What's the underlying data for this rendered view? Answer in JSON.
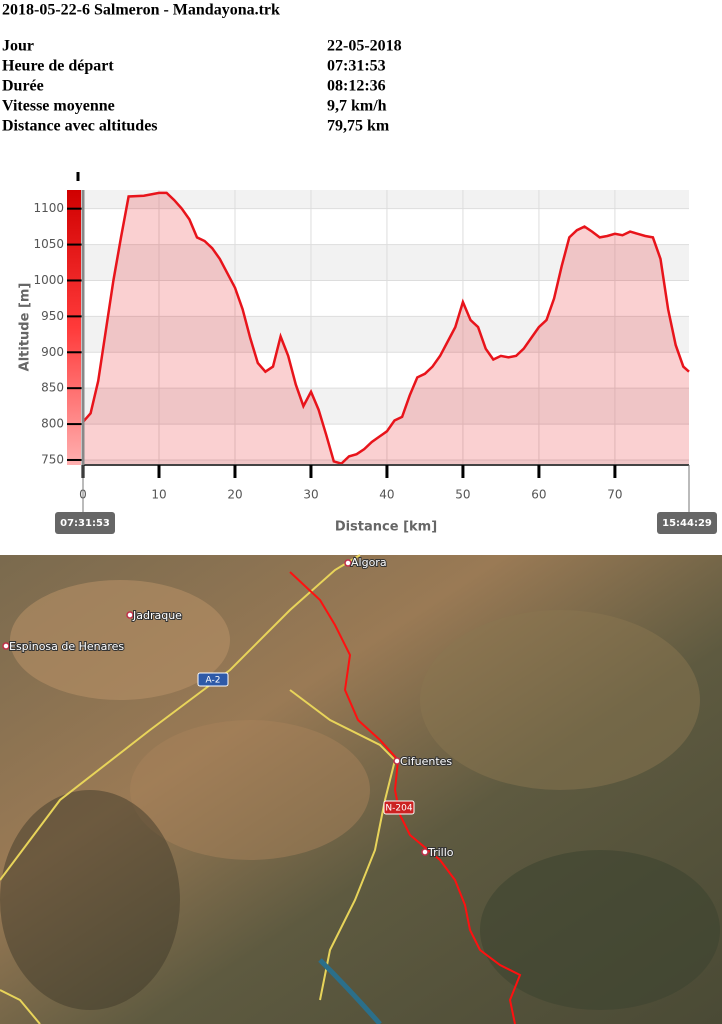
{
  "header": {
    "title": "2018-05-22-6 Salmeron - Mandayona.trk"
  },
  "table": {
    "rows": [
      [
        "Jour",
        "22-05-2018"
      ],
      [
        "Heure de départ",
        "07:31:53"
      ],
      [
        "Durée",
        "08:12:36"
      ],
      [
        "Vitesse moyenne",
        "9,7 km/h"
      ],
      [
        "Distance avec altitudes",
        "79,75 km"
      ]
    ]
  },
  "chart_data": {
    "type": "area",
    "x_label": "Distance [km]",
    "y_label": "Altitude [m]",
    "color": "#e8141b",
    "start_label": "07:31:53",
    "end_label": "15:44:29",
    "x": [
      0,
      1,
      2,
      3,
      4,
      5,
      6,
      8,
      10,
      11,
      12,
      13,
      14,
      15,
      16,
      17,
      18,
      19,
      20,
      21,
      22,
      23,
      24,
      25,
      26,
      27,
      28,
      29,
      30,
      31,
      32,
      33,
      34,
      35,
      36,
      37,
      38,
      40,
      41,
      42,
      43,
      44,
      45,
      46,
      47,
      48,
      49,
      50,
      51,
      52,
      53,
      54,
      55,
      56,
      57,
      58,
      59,
      60,
      61,
      62,
      63,
      64,
      65,
      66,
      67,
      68,
      69,
      70,
      71,
      72,
      73,
      74,
      75,
      76,
      77,
      78,
      79,
      79.75
    ],
    "values": [
      803,
      815,
      860,
      930,
      1000,
      1060,
      1117,
      1118,
      1122,
      1122,
      1112,
      1100,
      1085,
      1060,
      1055,
      1045,
      1030,
      1010,
      990,
      960,
      920,
      885,
      873,
      880,
      922,
      895,
      855,
      825,
      845,
      820,
      785,
      748,
      745,
      755,
      758,
      765,
      775,
      790,
      805,
      810,
      840,
      865,
      870,
      880,
      895,
      915,
      935,
      970,
      945,
      935,
      905,
      890,
      895,
      893,
      895,
      905,
      920,
      935,
      945,
      975,
      1020,
      1060,
      1070,
      1075,
      1068,
      1060,
      1062,
      1065,
      1063,
      1068,
      1065,
      1062,
      1060,
      1030,
      960,
      910,
      880,
      873
    ],
    "xlim": [
      0,
      79.75
    ],
    "ylim": [
      743,
      1126
    ],
    "xticks": [
      0,
      10,
      20,
      30,
      40,
      50,
      60,
      70
    ],
    "yticks": [
      750,
      800,
      850,
      900,
      950,
      1000,
      1050,
      1100
    ],
    "grid": true
  },
  "map": {
    "labels": [
      "Algora",
      "Jadraque",
      "Espinosa de Henares",
      "A-2",
      "Cifuentes",
      "N-204",
      "Trillo"
    ]
  }
}
